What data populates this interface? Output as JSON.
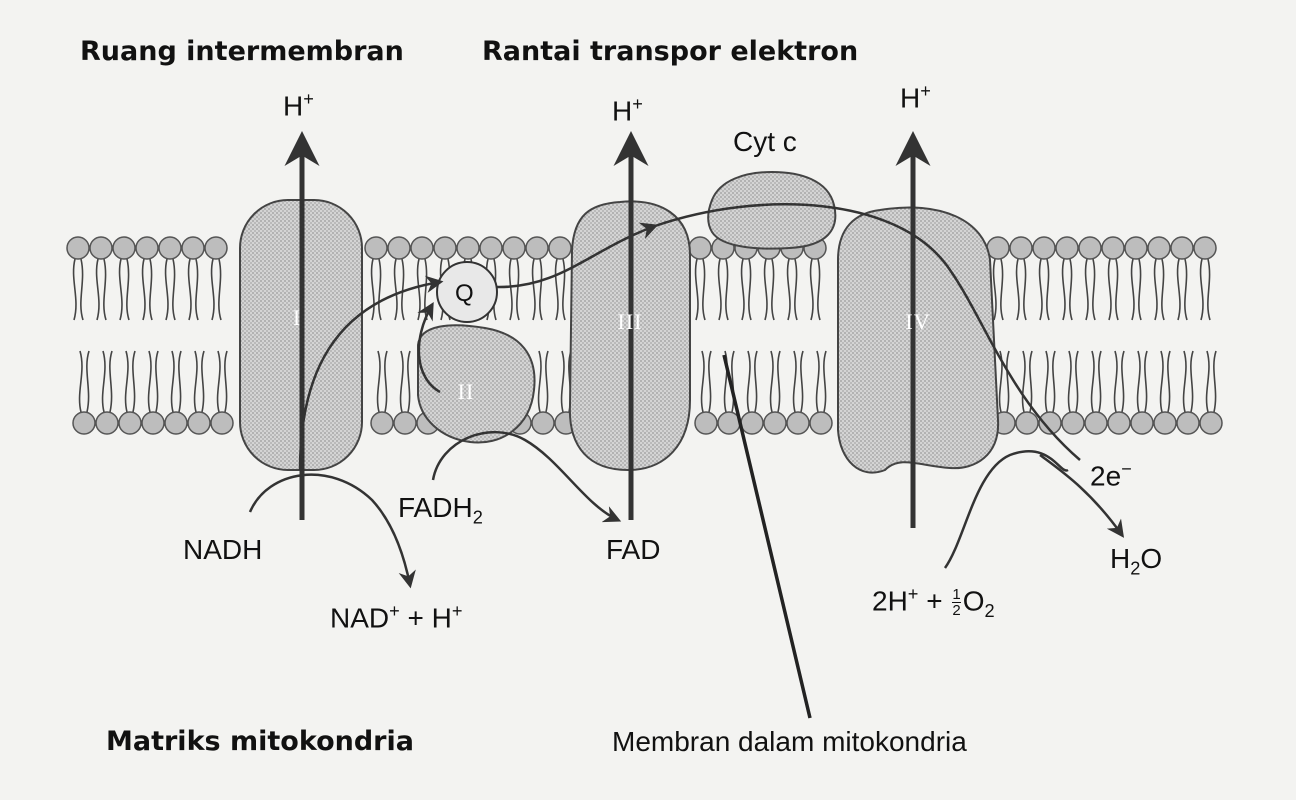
{
  "headers": {
    "intermembrane": "Ruang intermembran",
    "etc": "Rantai transpor elektron",
    "matrix": "Matriks mitokondria",
    "inner_membrane": "Membran dalam mitokondria"
  },
  "ions": {
    "h_plus_1": {
      "base": "H",
      "sup": "+"
    },
    "h_plus_3": {
      "base": "H",
      "sup": "+"
    },
    "h_plus_4": {
      "base": "H",
      "sup": "+"
    }
  },
  "complexes": {
    "c1": "I",
    "c2": "II",
    "c3": "III",
    "c4": "IV",
    "q": "Q",
    "cytc": "Cyt c"
  },
  "molecules": {
    "nadh": "NADH",
    "nad": {
      "base": "NAD",
      "sup": "+",
      "rest": " + H",
      "sup2": "+"
    },
    "fadh2": {
      "base": "FADH",
      "sub": "2"
    },
    "fad": "FAD",
    "electrons": {
      "base": "2e",
      "sup": "−"
    },
    "water": {
      "base": "H",
      "sub": "2",
      "rest": "O"
    },
    "oxygen": {
      "a": "2H",
      "sup": "+",
      "plus": " + ",
      "num": "1",
      "den": "2",
      "o": "O",
      "sub": "2"
    }
  },
  "colors": {
    "protein": "#cdcdcd",
    "lipid_head": "#bdbdbd",
    "ink": "#111111",
    "background": "#f3f3f1"
  }
}
